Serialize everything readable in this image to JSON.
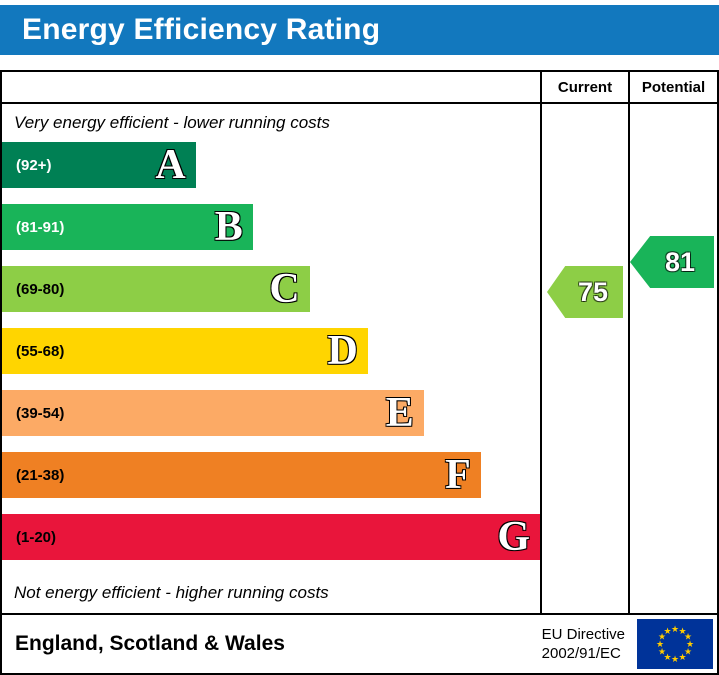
{
  "title": "Energy Efficiency Rating",
  "header": {
    "current": "Current",
    "potential": "Potential"
  },
  "notes": {
    "top": "Very energy efficient - lower running costs",
    "bottom": "Not energy efficient - higher running costs"
  },
  "footer": {
    "region": "England, Scotland & Wales",
    "directive_line1": "EU Directive",
    "directive_line2": "2002/91/EC"
  },
  "colors": {
    "title_bar": "#1278be",
    "title_text": "#ffffff",
    "border": "#000000",
    "eu_flag_blue": "#003399",
    "eu_flag_stars": "#ffcc00"
  },
  "chart_data": {
    "type": "bar",
    "title": "Energy Efficiency Rating",
    "categories": [
      "A",
      "B",
      "C",
      "D",
      "E",
      "F",
      "G"
    ],
    "bands": [
      {
        "letter": "A",
        "range": "(92+)",
        "color": "#008054",
        "label_color": "#ffffff",
        "width_pct": 36
      },
      {
        "letter": "B",
        "range": "(81-91)",
        "color": "#19b459",
        "label_color": "#ffffff",
        "width_pct": 46.6
      },
      {
        "letter": "C",
        "range": "(69-80)",
        "color": "#8dce46",
        "label_color": "#000000",
        "width_pct": 57.2
      },
      {
        "letter": "D",
        "range": "(55-68)",
        "color": "#ffd500",
        "label_color": "#000000",
        "width_pct": 68
      },
      {
        "letter": "E",
        "range": "(39-54)",
        "color": "#fcaa65",
        "label_color": "#000000",
        "width_pct": 78.4
      },
      {
        "letter": "F",
        "range": "(21-38)",
        "color": "#ef8023",
        "label_color": "#000000",
        "width_pct": 89
      },
      {
        "letter": "G",
        "range": "(1-20)",
        "color": "#e9153b",
        "label_color": "#000000",
        "width_pct": 100
      }
    ],
    "current": {
      "column_label": "Current",
      "value": 75,
      "band": "C",
      "color": "#8dce46"
    },
    "potential": {
      "column_label": "Potential",
      "value": 81,
      "band": "B",
      "color": "#19b459"
    }
  }
}
